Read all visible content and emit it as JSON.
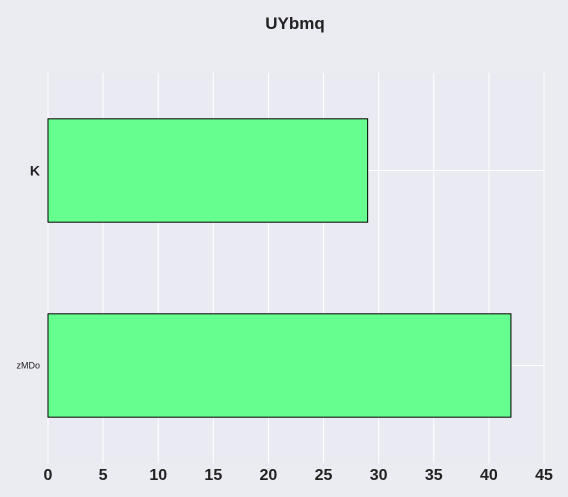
{
  "chart_data": {
    "type": "bar",
    "orientation": "horizontal",
    "title": "UYbmq",
    "xlabel": "",
    "ylabel": "",
    "categories": [
      "K",
      "zMDo"
    ],
    "values": [
      29,
      42
    ],
    "xlim": [
      0,
      45
    ],
    "xticks": [
      0,
      5,
      10,
      15,
      20,
      25,
      30,
      35,
      40,
      45
    ],
    "grid": true,
    "legend": "none",
    "colors": {
      "background": "#ebebf2",
      "plot_background": "#eaeaf2",
      "grid": "#ffffff",
      "bar_fill": "#66ff8f",
      "bar_edge": "#000000",
      "text": "#222222"
    }
  }
}
